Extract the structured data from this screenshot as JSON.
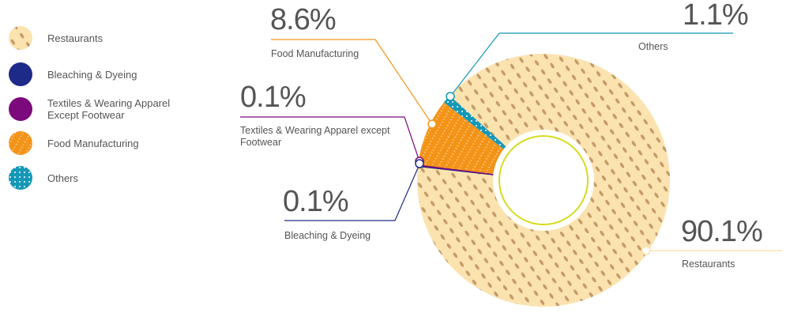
{
  "chart_data": {
    "type": "pie",
    "variant": "donut",
    "title": "",
    "legend_position": "left",
    "slices": [
      {
        "name": "Restaurants",
        "value": 90.1,
        "label": "90.1%",
        "callout": "Restaurants",
        "color": "#fbe3b0",
        "pattern_color": "#c49a68"
      },
      {
        "name": "Bleaching & Dyeing",
        "value": 0.1,
        "label": "0.1%",
        "callout": "Bleaching & Dyeing",
        "color": "#1e2a87"
      },
      {
        "name": "Textiles & Wearing Apparel Except Footwear",
        "value": 0.1,
        "label": "0.1%",
        "callout": "Textiles & Wearing Apparel except Footwear",
        "color": "#7c0a7c"
      },
      {
        "name": "Food Manufacturing",
        "value": 8.6,
        "label": "8.6%",
        "callout": "Food Manufacturing",
        "color": "#f39419"
      },
      {
        "name": "Others",
        "value": 1.1,
        "label": "1.1%",
        "callout": "Others",
        "color": "#1598b8"
      }
    ],
    "legend": [
      "Restaurants",
      "Bleaching & Dyeing",
      "Textiles & Wearing Apparel Except Footwear",
      "Food Manufacturing",
      "Others"
    ],
    "center_ring_color": "#d6dc1e"
  }
}
